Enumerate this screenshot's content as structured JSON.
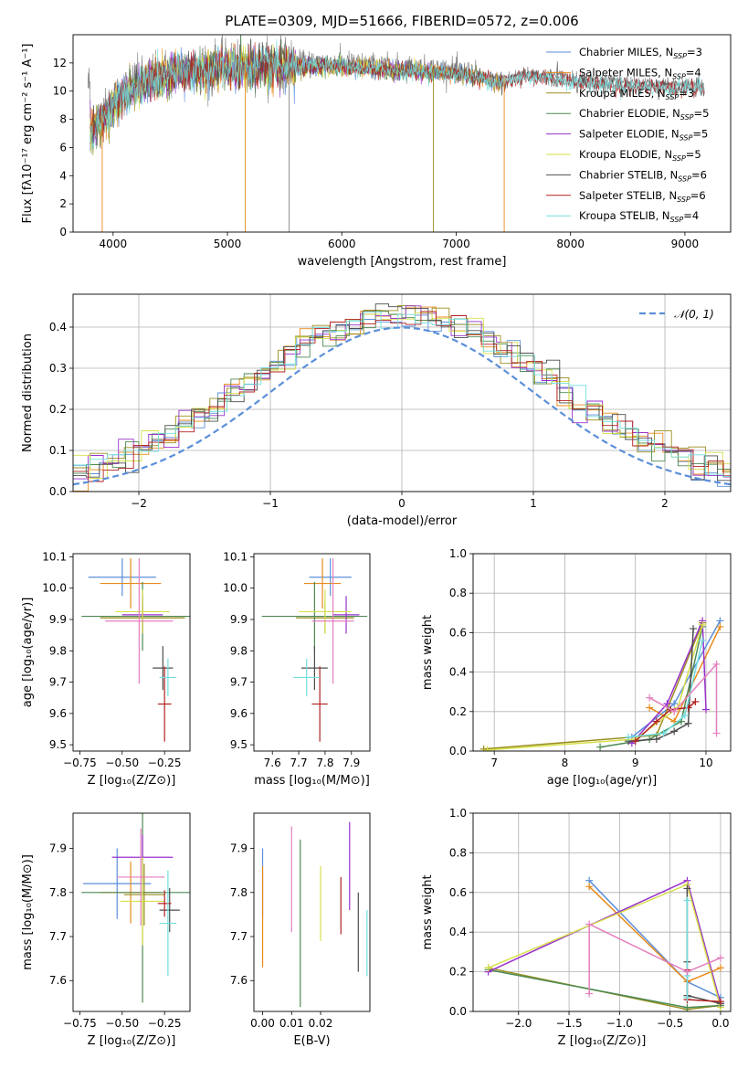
{
  "figure_title": "PLATE=0309, MJD=51666, FIBERID=0572, z=0.006",
  "colors": {
    "Chabrier MILES": "#5b8fd9",
    "Salpeter MILES": "#e88a1a",
    "Kroupa MILES": "#9a8e1f",
    "Chabrier ELODIE": "#4e8a53",
    "Salpeter ELODIE": "#9932cc",
    "Kroupa ELODIE": "#d6e04a",
    "Chabrier STELIB": "#4d4d4d",
    "Salpeter STELIB": "#b22222",
    "Kroupa STELIB": "#72dede",
    "Salpeter MILES (mass weight)": "#e37fbd",
    "normal": "#5b8fd9"
  },
  "chart_data": [
    {
      "id": "spectrum",
      "type": "line",
      "title": "PLATE=0309, MJD=51666, FIBERID=0572, z=0.006",
      "xlabel": "wavelength [Angstrom, rest frame]",
      "ylabel": "Flux [fλ10⁻¹⁷ erg cm⁻² s⁻¹ A⁻¹]",
      "xlim": [
        3650,
        9400
      ],
      "ylim": [
        0,
        14
      ],
      "xticks": [
        4000,
        5000,
        6000,
        7000,
        8000,
        9000
      ],
      "yticks": [
        0,
        2,
        4,
        6,
        8,
        10,
        12
      ],
      "grid": false,
      "legend_position": "top-right",
      "legend": [
        "Chabrier MILES, N_SSP=3",
        "Salpeter MILES, N_SSP=4",
        "Kroupa MILES, N_SSP=3",
        "Chabrier ELODIE, N_SSP=5",
        "Salpeter ELODIE, N_SSP=5",
        "Kroupa ELODIE, N_SSP=5",
        "Chabrier STELIB, N_SSP=6",
        "Salpeter STELIB, N_SSP=6",
        "Kroupa STELIB, N_SSP=4"
      ],
      "envelope": {
        "x": [
          3800,
          3900,
          4000,
          4100,
          4200,
          4400,
          4600,
          4800,
          5000,
          5200,
          5400,
          5600,
          5800,
          6000,
          6200,
          6400,
          6600,
          6800,
          7000,
          7200,
          7400,
          7600,
          7800,
          8000,
          8200,
          8400,
          8600,
          8800,
          9000,
          9150
        ],
        "y": [
          7.2,
          8.2,
          9.2,
          10.0,
          10.6,
          11.2,
          11.6,
          11.8,
          11.9,
          11.95,
          12.0,
          12.0,
          12.05,
          12.05,
          11.9,
          11.8,
          11.7,
          11.6,
          11.5,
          11.2,
          10.9,
          11.3,
          11.2,
          11.0,
          10.8,
          10.7,
          10.6,
          10.5,
          10.5,
          10.5
        ]
      }
    },
    {
      "id": "residuals",
      "type": "line",
      "xlabel": "(data-model)/error",
      "ylabel": "Normed distribution",
      "xlim": [
        -2.5,
        2.5
      ],
      "ylim": [
        0,
        0.48
      ],
      "xticks": [
        -2,
        -1,
        0,
        1,
        2
      ],
      "yticks": [
        0.0,
        0.1,
        0.2,
        0.3,
        0.4
      ],
      "grid": true,
      "legend_position": "top-right",
      "legend": [
        "𝒩(0, 1)"
      ]
    },
    {
      "id": "age_vs_Z",
      "type": "scatter",
      "xlabel": "Z [log₁₀(Z/Z⊙)]",
      "ylabel": "age  [log₁₀(age/yr)]",
      "xlim": [
        -0.79,
        -0.1
      ],
      "ylim": [
        9.48,
        10.11
      ],
      "xticks": [
        -0.75,
        -0.5,
        -0.25
      ],
      "yticks": [
        9.5,
        9.6,
        9.7,
        9.8,
        9.9,
        10.0,
        10.1
      ],
      "grid": false,
      "series": [
        {
          "name": "Chabrier MILES",
          "x": -0.5,
          "y": 10.035,
          "xerr": 0.2,
          "yerr": 0.06
        },
        {
          "name": "Salpeter MILES",
          "x": -0.45,
          "y": 10.015,
          "xerr": 0.18,
          "yerr": 0.08
        },
        {
          "name": "Kroupa MILES",
          "x": -0.38,
          "y": 9.905,
          "xerr": 0.25,
          "yerr": 0.05
        },
        {
          "name": "Chabrier ELODIE",
          "x": -0.38,
          "y": 9.91,
          "xerr": 0.36,
          "yerr": 0.11
        },
        {
          "name": "Salpeter ELODIE",
          "x": -0.38,
          "y": 9.915,
          "xerr": 0.12,
          "yerr": 0.06
        },
        {
          "name": "Kroupa ELODIE",
          "x": -0.38,
          "y": 9.925,
          "xerr": 0.16,
          "yerr": 0.07
        },
        {
          "name": "Chabrier STELIB",
          "x": -0.26,
          "y": 9.745,
          "xerr": 0.06,
          "yerr": 0.07
        },
        {
          "name": "Salpeter STELIB",
          "x": -0.25,
          "y": 9.63,
          "xerr": 0.04,
          "yerr": 0.12
        },
        {
          "name": "Kroupa STELIB",
          "x": -0.23,
          "y": 9.715,
          "xerr": 0.05,
          "yerr": 0.06
        },
        {
          "name": "Salpeter MILES (pink)",
          "x": -0.4,
          "y": 9.895,
          "xerr": 0.2,
          "yerr": 0.2
        }
      ]
    },
    {
      "id": "age_vs_mass",
      "type": "scatter",
      "xlabel": "mass [log₁₀(M/M⊙)]",
      "ylabel": "",
      "xlim": [
        7.53,
        7.97
      ],
      "ylim": [
        9.48,
        10.11
      ],
      "xticks": [
        7.6,
        7.7,
        7.8,
        7.9
      ],
      "yticks": [
        9.5,
        9.6,
        9.7,
        9.8,
        9.9,
        10.0,
        10.1
      ],
      "grid": false,
      "series": [
        {
          "name": "Chabrier MILES",
          "x": 7.82,
          "y": 10.035,
          "xerr": 0.08,
          "yerr": 0.06
        },
        {
          "name": "Salpeter MILES",
          "x": 7.79,
          "y": 10.015,
          "xerr": 0.07,
          "yerr": 0.08
        },
        {
          "name": "Kroupa MILES",
          "x": 7.8,
          "y": 9.905,
          "xerr": 0.11,
          "yerr": 0.05
        },
        {
          "name": "Chabrier ELODIE",
          "x": 7.76,
          "y": 9.91,
          "xerr": 0.2,
          "yerr": 0.11
        },
        {
          "name": "Salpeter ELODIE",
          "x": 7.88,
          "y": 9.915,
          "xerr": 0.05,
          "yerr": 0.06
        },
        {
          "name": "Kroupa ELODIE",
          "x": 7.8,
          "y": 9.925,
          "xerr": 0.1,
          "yerr": 0.07
        },
        {
          "name": "Chabrier STELIB",
          "x": 7.76,
          "y": 9.745,
          "xerr": 0.05,
          "yerr": 0.07
        },
        {
          "name": "Salpeter STELIB",
          "x": 7.78,
          "y": 9.63,
          "xerr": 0.03,
          "yerr": 0.12
        },
        {
          "name": "Kroupa STELIB",
          "x": 7.73,
          "y": 9.715,
          "xerr": 0.05,
          "yerr": 0.06
        },
        {
          "name": "Salpeter MILES (pink)",
          "x": 7.83,
          "y": 9.895,
          "xerr": 0.08,
          "yerr": 0.2
        }
      ]
    },
    {
      "id": "mass_weight_vs_age",
      "type": "line",
      "xlabel": "age  [log₁₀(age/yr)]",
      "ylabel": "mass weight",
      "xlim": [
        6.7,
        10.35
      ],
      "ylim": [
        0,
        1.0
      ],
      "xticks": [
        7,
        8,
        9,
        10
      ],
      "yticks": [
        0.0,
        0.2,
        0.4,
        0.6,
        0.8,
        1.0
      ],
      "grid": true,
      "series": [
        {
          "name": "Chabrier MILES",
          "x": [
            8.95,
            9.55,
            10.2
          ],
          "y": [
            0.07,
            0.24,
            0.66
          ]
        },
        {
          "name": "Salpeter MILES",
          "x": [
            9.2,
            9.55,
            10.2
          ],
          "y": [
            0.22,
            0.15,
            0.63
          ]
        },
        {
          "name": "Kroupa MILES",
          "x": [
            6.85,
            9.3,
            9.95
          ],
          "y": [
            0.01,
            0.08,
            0.65
          ]
        },
        {
          "name": "Chabrier ELODIE",
          "x": [
            8.5,
            9.2,
            9.65,
            9.95
          ],
          "y": [
            0.02,
            0.06,
            0.15,
            0.63
          ]
        },
        {
          "name": "Salpeter ELODIE",
          "x": [
            8.95,
            9.45,
            9.95,
            10.0
          ],
          "y": [
            0.04,
            0.24,
            0.66,
            0.21
          ]
        },
        {
          "name": "Kroupa ELODIE",
          "x": [
            6.9,
            9.0,
            9.6,
            9.95
          ],
          "y": [
            0.005,
            0.06,
            0.22,
            0.64
          ]
        },
        {
          "name": "Chabrier STELIB",
          "x": [
            8.9,
            9.3,
            9.55,
            9.75,
            9.82
          ],
          "y": [
            0.05,
            0.06,
            0.1,
            0.14,
            0.62
          ]
        },
        {
          "name": "Salpeter STELIB",
          "x": [
            9.0,
            9.3,
            9.5,
            9.75,
            9.85
          ],
          "y": [
            0.05,
            0.15,
            0.21,
            0.22,
            0.25
          ]
        },
        {
          "name": "Kroupa STELIB",
          "x": [
            8.9,
            9.4,
            9.7,
            9.95
          ],
          "y": [
            0.07,
            0.09,
            0.18,
            0.56
          ]
        },
        {
          "name": "Salpeter MILES (pink)",
          "x": [
            9.2,
            9.55,
            10.15,
            10.15
          ],
          "y": [
            0.27,
            0.2,
            0.44,
            0.09
          ]
        }
      ]
    },
    {
      "id": "mass_vs_Z",
      "type": "scatter",
      "xlabel": "Z [log₁₀(Z/Z⊙)]",
      "ylabel": "mass [log₁₀(M/M⊙)]",
      "xlim": [
        -0.79,
        -0.1
      ],
      "ylim": [
        7.53,
        7.98
      ],
      "xticks": [
        -0.75,
        -0.5,
        -0.25
      ],
      "yticks": [
        7.6,
        7.7,
        7.8,
        7.9
      ],
      "grid": false,
      "series": [
        {
          "name": "Chabrier MILES",
          "x": -0.53,
          "y": 7.82,
          "xerr": 0.2,
          "yerr": 0.08
        },
        {
          "name": "Salpeter MILES",
          "x": -0.45,
          "y": 7.8,
          "xerr": 0.18,
          "yerr": 0.07
        },
        {
          "name": "Kroupa MILES",
          "x": -0.37,
          "y": 7.795,
          "xerr": 0.12,
          "yerr": 0.07
        },
        {
          "name": "Chabrier ELODIE",
          "x": -0.38,
          "y": 7.8,
          "xerr": 0.36,
          "yerr": 0.25
        },
        {
          "name": "Salpeter ELODIE",
          "x": -0.38,
          "y": 7.88,
          "xerr": 0.18,
          "yerr": 0.05
        },
        {
          "name": "Kroupa ELODIE",
          "x": -0.38,
          "y": 7.78,
          "xerr": 0.13,
          "yerr": 0.1
        },
        {
          "name": "Chabrier STELIB",
          "x": -0.22,
          "y": 7.76,
          "xerr": 0.06,
          "yerr": 0.05
        },
        {
          "name": "Salpeter STELIB",
          "x": -0.25,
          "y": 7.775,
          "xerr": 0.04,
          "yerr": 0.03
        },
        {
          "name": "Kroupa STELIB",
          "x": -0.23,
          "y": 7.73,
          "xerr": 0.05,
          "yerr": 0.12
        },
        {
          "name": "Salpeter MILES (pink)",
          "x": -0.39,
          "y": 7.835,
          "xerr": 0.14,
          "yerr": 0.11
        }
      ]
    },
    {
      "id": "mass_vs_EBV",
      "type": "scatter",
      "xlabel": "E(B-V)",
      "ylabel": "",
      "xlim": [
        -0.003,
        0.037
      ],
      "ylim": [
        7.53,
        7.98
      ],
      "xticks": [
        0.0,
        0.01,
        0.02
      ],
      "yticks": [
        7.6,
        7.7,
        7.8,
        7.9
      ],
      "grid": false,
      "series": [
        {
          "name": "Chabrier MILES",
          "x": 0.0,
          "y": 7.82,
          "xerr": 0,
          "yerr": 0.08
        },
        {
          "name": "Salpeter MILES",
          "x": 0.0,
          "y": 7.745,
          "xerr": 0,
          "yerr": 0.115
        },
        {
          "name": "Kroupa MILES",
          "x": 0.0,
          "y": 7.8,
          "xerr": 0,
          "yerr": 0.0
        },
        {
          "name": "Chabrier ELODIE",
          "x": 0.013,
          "y": 7.73,
          "xerr": 0,
          "yerr": 0.19
        },
        {
          "name": "Salpeter ELODIE",
          "x": 0.03,
          "y": 7.86,
          "xerr": 0,
          "yerr": 0.1
        },
        {
          "name": "Kroupa ELODIE",
          "x": 0.02,
          "y": 7.775,
          "xerr": 0,
          "yerr": 0.085
        },
        {
          "name": "Chabrier STELIB",
          "x": 0.033,
          "y": 7.71,
          "xerr": 0,
          "yerr": 0.09
        },
        {
          "name": "Salpeter STELIB",
          "x": 0.027,
          "y": 7.77,
          "xerr": 0,
          "yerr": 0.065
        },
        {
          "name": "Kroupa STELIB",
          "x": 0.036,
          "y": 7.685,
          "xerr": 0,
          "yerr": 0.075
        },
        {
          "name": "Salpeter MILES (pink)",
          "x": 0.01,
          "y": 7.83,
          "xerr": 0,
          "yerr": 0.12
        }
      ]
    },
    {
      "id": "mass_weight_vs_Z",
      "type": "line",
      "xlabel": "Z [log₁₀(Z/Z⊙)]",
      "ylabel": "mass weight",
      "xlim": [
        -2.45,
        0.1
      ],
      "ylim": [
        0,
        1.0
      ],
      "xticks": [
        -2.0,
        -1.5,
        -1.0,
        -0.5,
        0.0
      ],
      "yticks": [
        0.0,
        0.2,
        0.4,
        0.6,
        0.8,
        1.0
      ],
      "grid": true,
      "series": [
        {
          "name": "Chabrier MILES",
          "x": [
            -1.3,
            -0.33,
            0.0
          ],
          "y": [
            0.66,
            0.15,
            0.07
          ]
        },
        {
          "name": "Salpeter MILES",
          "x": [
            -1.3,
            -0.33,
            0.0
          ],
          "y": [
            0.63,
            0.15,
            0.22
          ]
        },
        {
          "name": "Kroupa MILES",
          "x": [
            -2.3,
            -0.33,
            0.0
          ],
          "y": [
            0.22,
            0.01,
            0.03
          ]
        },
        {
          "name": "Chabrier ELODIE",
          "x": [
            -2.3,
            -0.33,
            0.0
          ],
          "y": [
            0.21,
            0.02,
            0.03
          ]
        },
        {
          "name": "Salpeter ELODIE",
          "x": [
            -2.3,
            -0.33,
            0.0
          ],
          "y": [
            0.2,
            0.66,
            0.04
          ]
        },
        {
          "name": "Kroupa ELODIE",
          "x": [
            -2.3,
            -0.33,
            0.0
          ],
          "y": [
            0.22,
            0.64,
            0.02
          ]
        },
        {
          "name": "Chabrier STELIB",
          "x": [
            -0.33,
            -0.33,
            -0.33,
            0.0
          ],
          "y": [
            0.62,
            0.25,
            0.08,
            0.04
          ]
        },
        {
          "name": "Salpeter STELIB",
          "x": [
            -0.33,
            -0.33,
            0.0
          ],
          "y": [
            0.21,
            0.06,
            0.05
          ]
        },
        {
          "name": "Kroupa STELIB",
          "x": [
            -0.33,
            -0.33,
            -0.33
          ],
          "y": [
            0.56,
            0.18,
            0.07
          ]
        },
        {
          "name": "Salpeter MILES (pink)",
          "x": [
            -1.3,
            -1.3,
            -0.33,
            0.0
          ],
          "y": [
            0.09,
            0.44,
            0.2,
            0.27
          ]
        }
      ]
    }
  ]
}
